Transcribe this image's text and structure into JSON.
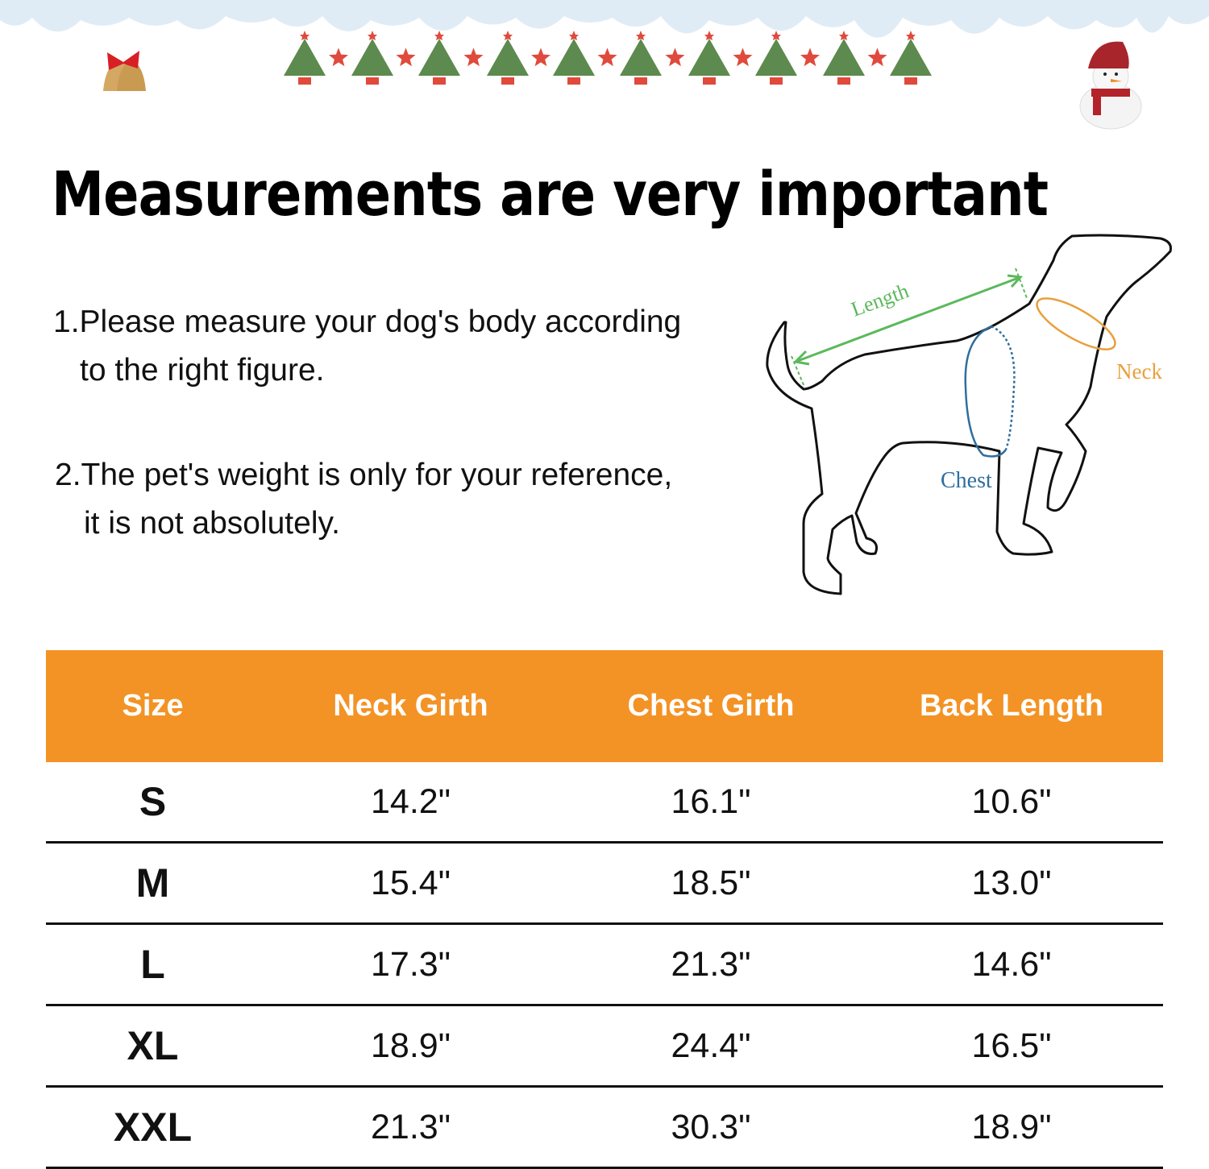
{
  "header": {
    "decorations": [
      "icicles",
      "bells-icon",
      "christmas-tree-icon",
      "star-icon",
      "snowman-icon"
    ],
    "title": "Measurements are very important"
  },
  "instructions": [
    {
      "line1": "1.Please measure your dog's body according",
      "line2": "to the right figure."
    },
    {
      "line1": "2.The pet's weight is only for your reference,",
      "line2": "it is not absolutely."
    }
  ],
  "figure": {
    "length_label": "Length",
    "neck_label": "Neck",
    "chest_label": "Chest",
    "colors": {
      "length": "#5cb85c",
      "neck": "#e8a03c",
      "chest": "#2f6e9e"
    }
  },
  "size_table": {
    "header_color": "#F39325",
    "columns": [
      "Size",
      "Neck Girth",
      "Chest Girth",
      "Back Length"
    ],
    "rows": [
      [
        "S",
        "14.2\"",
        "16.1\"",
        "10.6\""
      ],
      [
        "M",
        "15.4\"",
        "18.5\"",
        "13.0\""
      ],
      [
        "L",
        "17.3\"",
        "21.3\"",
        "14.6\""
      ],
      [
        "XL",
        "18.9\"",
        "24.4\"",
        "16.5\""
      ],
      [
        "XXL",
        "21.3\"",
        "30.3\"",
        "18.9\""
      ]
    ]
  }
}
